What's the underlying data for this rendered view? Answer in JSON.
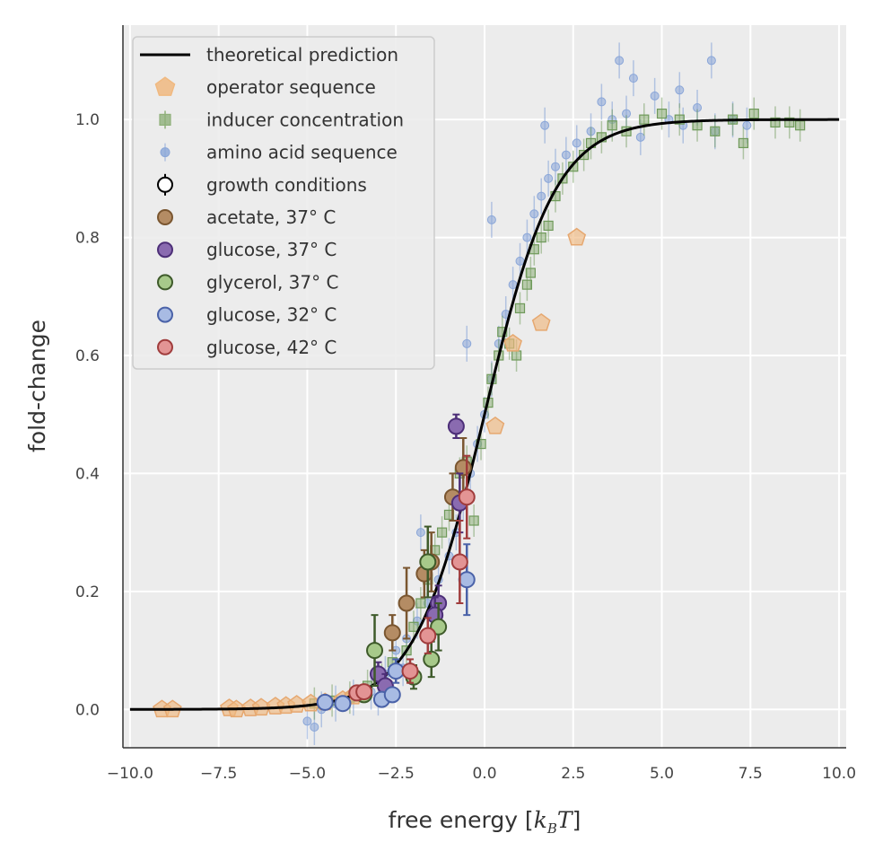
{
  "chart_data": {
    "type": "scatter",
    "xlabel": "free energy [k_BT]",
    "ylabel": "fold-change",
    "xlim": [
      -10.2,
      10.2
    ],
    "ylim": [
      -0.065,
      1.16
    ],
    "grid": true,
    "legend_position": "top-left",
    "xticks": [
      -10,
      -7.5,
      -5,
      -2.5,
      0,
      2.5,
      5,
      7.5,
      10
    ],
    "xtick_labels": [
      "−10.0",
      "−7.5",
      "−5.0",
      "−2.5",
      "0.0",
      "2.5",
      "5.0",
      "7.5",
      "10.0"
    ],
    "yticks": [
      0,
      0.2,
      0.4,
      0.6,
      0.8,
      1.0
    ],
    "ytick_labels": [
      "0.0",
      "0.2",
      "0.4",
      "0.6",
      "0.8",
      "1.0"
    ],
    "theory": {
      "name": "theoretical prediction",
      "color": "#000000",
      "x_range": [
        -10,
        10
      ],
      "function": "1/(1+exp(-x))"
    },
    "series": [
      {
        "name": "operator sequence",
        "marker": "pentagon",
        "color": "#f0b980",
        "edge": "#e6a870",
        "points": [
          [
            -9.1,
            0.0
          ],
          [
            -8.8,
            0.0
          ],
          [
            -7.2,
            0.002
          ],
          [
            -7.0,
            0.0
          ],
          [
            -6.6,
            0.002
          ],
          [
            -6.3,
            0.003
          ],
          [
            -5.9,
            0.005
          ],
          [
            -5.6,
            0.006
          ],
          [
            -5.3,
            0.008
          ],
          [
            -4.9,
            0.01
          ],
          [
            -4.5,
            0.012
          ],
          [
            -4.0,
            0.016
          ],
          [
            -3.7,
            0.022
          ],
          [
            0.3,
            0.48
          ],
          [
            0.8,
            0.62
          ],
          [
            1.6,
            0.655
          ],
          [
            2.6,
            0.8
          ]
        ]
      },
      {
        "name": "inducer concentration",
        "marker": "square",
        "color": "#8fb07a",
        "edge": "#6f9a5a",
        "points": [
          [
            -4.8,
            0.01
          ],
          [
            -4.3,
            0.015
          ],
          [
            -3.8,
            0.02
          ],
          [
            -3.3,
            0.04
          ],
          [
            -2.9,
            0.05
          ],
          [
            -2.6,
            0.08
          ],
          [
            -2.2,
            0.1
          ],
          [
            -2.0,
            0.14
          ],
          [
            -1.8,
            0.18
          ],
          [
            -1.6,
            0.22
          ],
          [
            -1.4,
            0.27
          ],
          [
            -1.2,
            0.3
          ],
          [
            -1.0,
            0.33
          ],
          [
            -0.9,
            0.36
          ],
          [
            -0.7,
            0.4
          ],
          [
            -0.5,
            0.42
          ],
          [
            -0.3,
            0.32
          ],
          [
            -0.1,
            0.45
          ],
          [
            0.1,
            0.52
          ],
          [
            0.2,
            0.56
          ],
          [
            0.4,
            0.6
          ],
          [
            0.5,
            0.64
          ],
          [
            0.7,
            0.62
          ],
          [
            0.9,
            0.6
          ],
          [
            1.0,
            0.68
          ],
          [
            1.2,
            0.72
          ],
          [
            1.3,
            0.74
          ],
          [
            1.4,
            0.78
          ],
          [
            1.6,
            0.8
          ],
          [
            1.8,
            0.82
          ],
          [
            2.0,
            0.87
          ],
          [
            2.2,
            0.9
          ],
          [
            2.5,
            0.92
          ],
          [
            2.8,
            0.94
          ],
          [
            3.0,
            0.96
          ],
          [
            3.3,
            0.97
          ],
          [
            3.6,
            0.99
          ],
          [
            4.0,
            0.98
          ],
          [
            4.5,
            1.0
          ],
          [
            5.0,
            1.01
          ],
          [
            5.5,
            1.0
          ],
          [
            6.0,
            0.99
          ],
          [
            6.5,
            0.98
          ],
          [
            7.0,
            1.0
          ],
          [
            7.3,
            0.96
          ],
          [
            7.6,
            1.01
          ],
          [
            8.2,
            0.995
          ],
          [
            8.6,
            0.995
          ],
          [
            8.9,
            0.99
          ]
        ]
      },
      {
        "name": "amino acid sequence",
        "marker": "circle-small",
        "color": "#8aa6d8",
        "edge": "#8aa6d8",
        "points": [
          [
            -5.0,
            -0.02
          ],
          [
            -4.6,
            0.0
          ],
          [
            -4.2,
            0.01
          ],
          [
            -3.7,
            0.02
          ],
          [
            -3.2,
            0.03
          ],
          [
            -2.8,
            0.06
          ],
          [
            -2.5,
            0.1
          ],
          [
            -2.2,
            0.12
          ],
          [
            -1.9,
            0.15
          ],
          [
            -1.6,
            0.18
          ],
          [
            -1.3,
            0.22
          ],
          [
            -1.0,
            0.26
          ],
          [
            -0.8,
            0.3
          ],
          [
            -0.6,
            0.35
          ],
          [
            -0.4,
            0.4
          ],
          [
            -0.2,
            0.45
          ],
          [
            0.0,
            0.5
          ],
          [
            0.2,
            0.56
          ],
          [
            0.4,
            0.62
          ],
          [
            0.6,
            0.67
          ],
          [
            0.8,
            0.72
          ],
          [
            1.0,
            0.76
          ],
          [
            1.2,
            0.8
          ],
          [
            1.4,
            0.84
          ],
          [
            1.6,
            0.87
          ],
          [
            1.8,
            0.9
          ],
          [
            2.0,
            0.92
          ],
          [
            2.3,
            0.94
          ],
          [
            2.6,
            0.96
          ],
          [
            3.0,
            0.98
          ],
          [
            3.3,
            1.03
          ],
          [
            3.6,
            1.0
          ],
          [
            4.0,
            1.01
          ],
          [
            4.4,
            0.97
          ],
          [
            4.8,
            1.04
          ],
          [
            5.2,
            1.0
          ],
          [
            5.6,
            0.99
          ],
          [
            6.0,
            1.02
          ],
          [
            6.5,
            0.98
          ],
          [
            7.0,
            1.0
          ],
          [
            7.4,
            0.99
          ],
          [
            0.2,
            0.83
          ],
          [
            -0.5,
            0.62
          ],
          [
            -1.8,
            0.3
          ],
          [
            1.7,
            0.99
          ],
          [
            3.8,
            1.1
          ],
          [
            4.2,
            1.07
          ],
          [
            5.5,
            1.05
          ],
          [
            6.4,
            1.1
          ],
          [
            -3.0,
            0.02
          ],
          [
            -2.3,
            0.07
          ],
          [
            -4.8,
            -0.03
          ]
        ]
      },
      {
        "name": "acetate, 37° C",
        "marker": "circle",
        "color": "#b48c64",
        "edge": "#7a5630",
        "points": [
          [
            -2.6,
            0.13,
            0.03
          ],
          [
            -2.2,
            0.18,
            0.06
          ],
          [
            -1.7,
            0.23,
            0.04
          ],
          [
            -1.5,
            0.25,
            0.05
          ],
          [
            -0.6,
            0.41,
            0.05
          ],
          [
            -0.9,
            0.36,
            0.04
          ]
        ]
      },
      {
        "name": "glucose, 37° C",
        "marker": "circle",
        "color": "#8a6bb0",
        "edge": "#4d2f78",
        "points": [
          [
            -3.0,
            0.06,
            0.02
          ],
          [
            -2.8,
            0.04,
            0.02
          ],
          [
            -1.3,
            0.18,
            0.03
          ],
          [
            -1.4,
            0.16,
            0.03
          ],
          [
            -0.8,
            0.48,
            0.02
          ],
          [
            -0.7,
            0.35,
            0.05
          ]
        ]
      },
      {
        "name": "glycerol, 37° C",
        "marker": "circle",
        "color": "#a7c98a",
        "edge": "#3e5a2a",
        "points": [
          [
            -3.1,
            0.1,
            0.06
          ],
          [
            -2.0,
            0.055,
            0.02
          ],
          [
            -1.5,
            0.085,
            0.03
          ],
          [
            -1.3,
            0.14,
            0.04
          ],
          [
            -1.6,
            0.25,
            0.06
          ],
          [
            -3.4,
            0.025,
            0.01
          ]
        ]
      },
      {
        "name": "glucose, 32° C",
        "marker": "circle",
        "color": "#a8bbe3",
        "edge": "#4a62a8",
        "points": [
          [
            -4.5,
            0.012,
            0.005
          ],
          [
            -4.0,
            0.01,
            0.005
          ],
          [
            -2.9,
            0.017,
            0.006
          ],
          [
            -2.6,
            0.025,
            0.01
          ],
          [
            -2.5,
            0.065,
            0.02
          ],
          [
            -0.5,
            0.22,
            0.06
          ]
        ]
      },
      {
        "name": "glucose, 42° C",
        "marker": "circle",
        "color": "#e39494",
        "edge": "#a03c3c",
        "points": [
          [
            -3.6,
            0.028,
            0.008
          ],
          [
            -3.4,
            0.03,
            0.008
          ],
          [
            -2.1,
            0.065,
            0.02
          ],
          [
            -1.6,
            0.125,
            0.03
          ],
          [
            -0.7,
            0.25,
            0.07
          ],
          [
            -0.5,
            0.36,
            0.07
          ]
        ]
      }
    ],
    "legend": [
      {
        "label": "theoretical prediction",
        "marker": "line",
        "color": "#000000"
      },
      {
        "label": "operator sequence",
        "marker": "pentagon",
        "color": "#f0b980"
      },
      {
        "label": "inducer concentration",
        "marker": "square",
        "color": "#8fb07a"
      },
      {
        "label": "amino acid sequence",
        "marker": "circle-small",
        "color": "#8aa6d8"
      },
      {
        "label": "growth conditions",
        "marker": "circle-open",
        "color": "#000000"
      },
      {
        "label": "acetate, 37° C",
        "marker": "circle",
        "color": "#b48c64",
        "edge": "#7a5630"
      },
      {
        "label": "glucose, 37° C",
        "marker": "circle",
        "color": "#8a6bb0",
        "edge": "#4d2f78"
      },
      {
        "label": "glycerol, 37° C",
        "marker": "circle",
        "color": "#a7c98a",
        "edge": "#3e5a2a"
      },
      {
        "label": "glucose, 32° C",
        "marker": "circle",
        "color": "#a8bbe3",
        "edge": "#4a62a8"
      },
      {
        "label": "glucose, 42° C",
        "marker": "circle",
        "color": "#e39494",
        "edge": "#a03c3c"
      }
    ]
  }
}
